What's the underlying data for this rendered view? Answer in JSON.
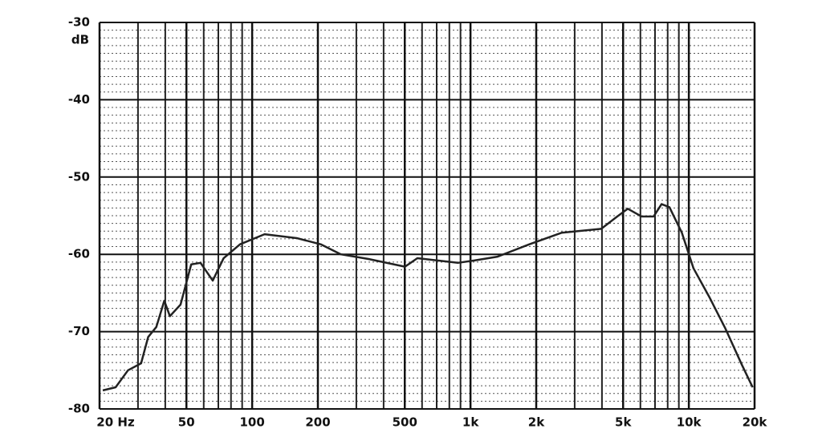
{
  "chart_data": {
    "type": "line",
    "y_unit": "dB",
    "xscale": "log",
    "xlim": [
      20,
      20000
    ],
    "ylim": [
      -80,
      -30
    ],
    "xticks": [
      {
        "value": 20,
        "label": "20 Hz"
      },
      50,
      100,
      200,
      500,
      {
        "value": 1000,
        "label": "1k"
      },
      {
        "value": 2000,
        "label": "2k"
      },
      {
        "value": 5000,
        "label": "5k"
      },
      {
        "value": 10000,
        "label": "10k"
      },
      {
        "value": 20000,
        "label": "20k"
      }
    ],
    "yticks": [
      -30,
      -40,
      -50,
      -60,
      -70,
      -80
    ],
    "x_minor_grid": [
      30,
      40,
      60,
      70,
      80,
      90,
      300,
      400,
      600,
      700,
      800,
      900,
      3000,
      4000,
      6000,
      7000,
      8000,
      9000
    ],
    "y_minor_grid": [
      -31,
      -32,
      -33,
      -34,
      -35,
      -36,
      -37,
      -38,
      -39,
      -41,
      -42,
      -43,
      -44,
      -45,
      -46,
      -47,
      -48,
      -49,
      -51,
      -52,
      -53,
      -54,
      -55,
      -56,
      -57,
      -58,
      -59,
      -61,
      -62,
      -63,
      -64,
      -65,
      -66,
      -67,
      -68,
      -69,
      -71,
      -72,
      -73,
      -74,
      -75,
      -76,
      -77,
      -78,
      -79
    ],
    "grid": true,
    "color": "#222",
    "x": [
      20.7,
      23.7,
      27,
      31,
      33.4,
      36.4,
      39.6,
      42,
      47,
      52.6,
      58,
      66,
      74,
      88,
      114,
      160,
      206,
      255,
      341,
      501,
      571,
      875,
      1040,
      1330,
      1860,
      2620,
      3970,
      4700,
      5250,
      6070,
      6900,
      7500,
      8150,
      9290,
      10500,
      12400,
      14700,
      17500,
      19600
    ],
    "values": [
      -77.6,
      -77.2,
      -75,
      -74.1,
      -70.7,
      -69.4,
      -66,
      -68,
      -66.5,
      -61.3,
      -61.1,
      -63.4,
      -60.5,
      -58.7,
      -57.4,
      -57.9,
      -58.7,
      -60,
      -60.6,
      -61.6,
      -60.5,
      -61.1,
      -60.8,
      -60.3,
      -58.7,
      -57.2,
      -56.7,
      -55.1,
      -54.1,
      -55.1,
      -55.1,
      -53.5,
      -53.9,
      -57.2,
      -61.8,
      -65.5,
      -69.6,
      -74.3,
      -77.2
    ]
  }
}
